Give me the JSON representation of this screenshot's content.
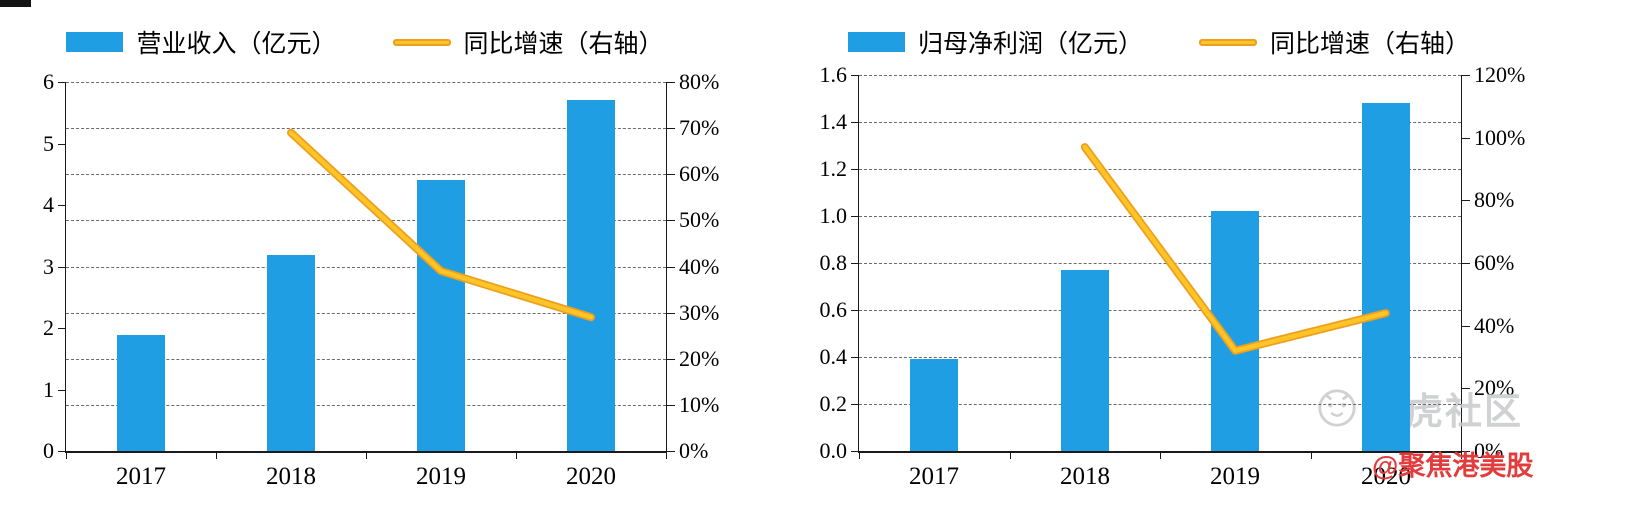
{
  "page": {
    "background": "#ffffff"
  },
  "watermarks": {
    "tiger_text": "老虎社区",
    "tiger_color": "#c8c9cb",
    "red_text": "@聚焦港美股",
    "red_color": "#e23c3c"
  },
  "chart_data": [
    {
      "type": "bar",
      "subtype": "combo-bar-line",
      "title": "",
      "legend_position": "top",
      "categories": [
        "2017",
        "2018",
        "2019",
        "2020"
      ],
      "series": [
        {
          "name": "营业收入（亿元）",
          "type": "bar",
          "axis": "left",
          "color": "#1f9ee4",
          "values": [
            1.88,
            3.18,
            4.4,
            5.7
          ]
        },
        {
          "name": "同比增速（右轴）",
          "type": "line",
          "axis": "right",
          "color": "#ffc425",
          "edge_color": "#ed9f1f",
          "values": [
            null,
            69,
            39,
            29
          ]
        }
      ],
      "left_axis": {
        "min": 0,
        "max": 6,
        "ticks": [
          "6",
          "5",
          "4",
          "3",
          "2",
          "1",
          "0"
        ]
      },
      "right_axis": {
        "min": 0,
        "max": 80,
        "ticks": [
          "80%",
          "70%",
          "60%",
          "50%",
          "40%",
          "30%",
          "20%",
          "10%",
          "0%"
        ]
      },
      "grid": {
        "intervals": 8,
        "style": "dashed"
      }
    },
    {
      "type": "bar",
      "subtype": "combo-bar-line",
      "title": "",
      "legend_position": "top",
      "categories": [
        "2017",
        "2018",
        "2019",
        "2020"
      ],
      "series": [
        {
          "name": "归母净利润（亿元）",
          "type": "bar",
          "axis": "left",
          "color": "#1f9ee4",
          "values": [
            0.39,
            0.77,
            1.02,
            1.48
          ]
        },
        {
          "name": "同比增速（右轴）",
          "type": "line",
          "axis": "right",
          "color": "#ffc425",
          "edge_color": "#ed9f1f",
          "values": [
            null,
            97,
            32,
            44
          ]
        }
      ],
      "left_axis": {
        "min": 0,
        "max": 1.6,
        "ticks": [
          "1.6",
          "1.4",
          "1.2",
          "1.0",
          "0.8",
          "0.6",
          "0.4",
          "0.2",
          "0.0"
        ]
      },
      "right_axis": {
        "min": 0,
        "max": 120,
        "ticks": [
          "120%",
          "100%",
          "80%",
          "60%",
          "40%",
          "20%",
          "0%"
        ]
      },
      "grid": {
        "intervals": 8,
        "style": "dashed"
      }
    }
  ]
}
